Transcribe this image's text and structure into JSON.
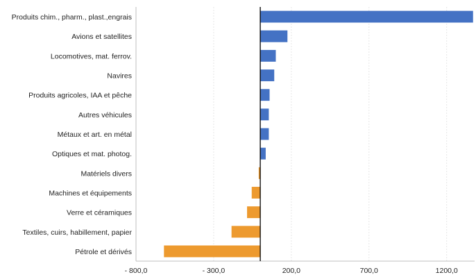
{
  "chart_data": {
    "type": "bar",
    "orientation": "horizontal",
    "categories": [
      "Produits chim., pharm., plast.,engrais",
      "Avions et satellites",
      "Locomotives, mat. ferrov.",
      "Navires",
      "Produits agricoles, IAA et pêche",
      "Autres véhicules",
      "Métaux et art. en métal",
      "Optiques et mat. photog.",
      "Matériels divers",
      "Machines et équipements",
      "Verre et céramiques",
      "Textiles, cuirs, habillement, papier",
      "Pétrole et dérivés"
    ],
    "values": [
      1370,
      175,
      100,
      90,
      60,
      55,
      55,
      35,
      -10,
      -55,
      -85,
      -185,
      -620
    ],
    "xlim": [
      -800,
      1380
    ],
    "xticks": [
      {
        "value": -800,
        "label": "- 800,0"
      },
      {
        "value": -300,
        "label": "- 300,0"
      },
      {
        "value": 200,
        "label": "200,0"
      },
      {
        "value": 700,
        "label": "700,0"
      },
      {
        "value": 1200,
        "label": "1200,0"
      }
    ],
    "grid": true,
    "colors": {
      "positive": "#4472c4",
      "negative": "#ed9a2f",
      "axis": "#000000",
      "grid": "#e6e6e6"
    }
  }
}
